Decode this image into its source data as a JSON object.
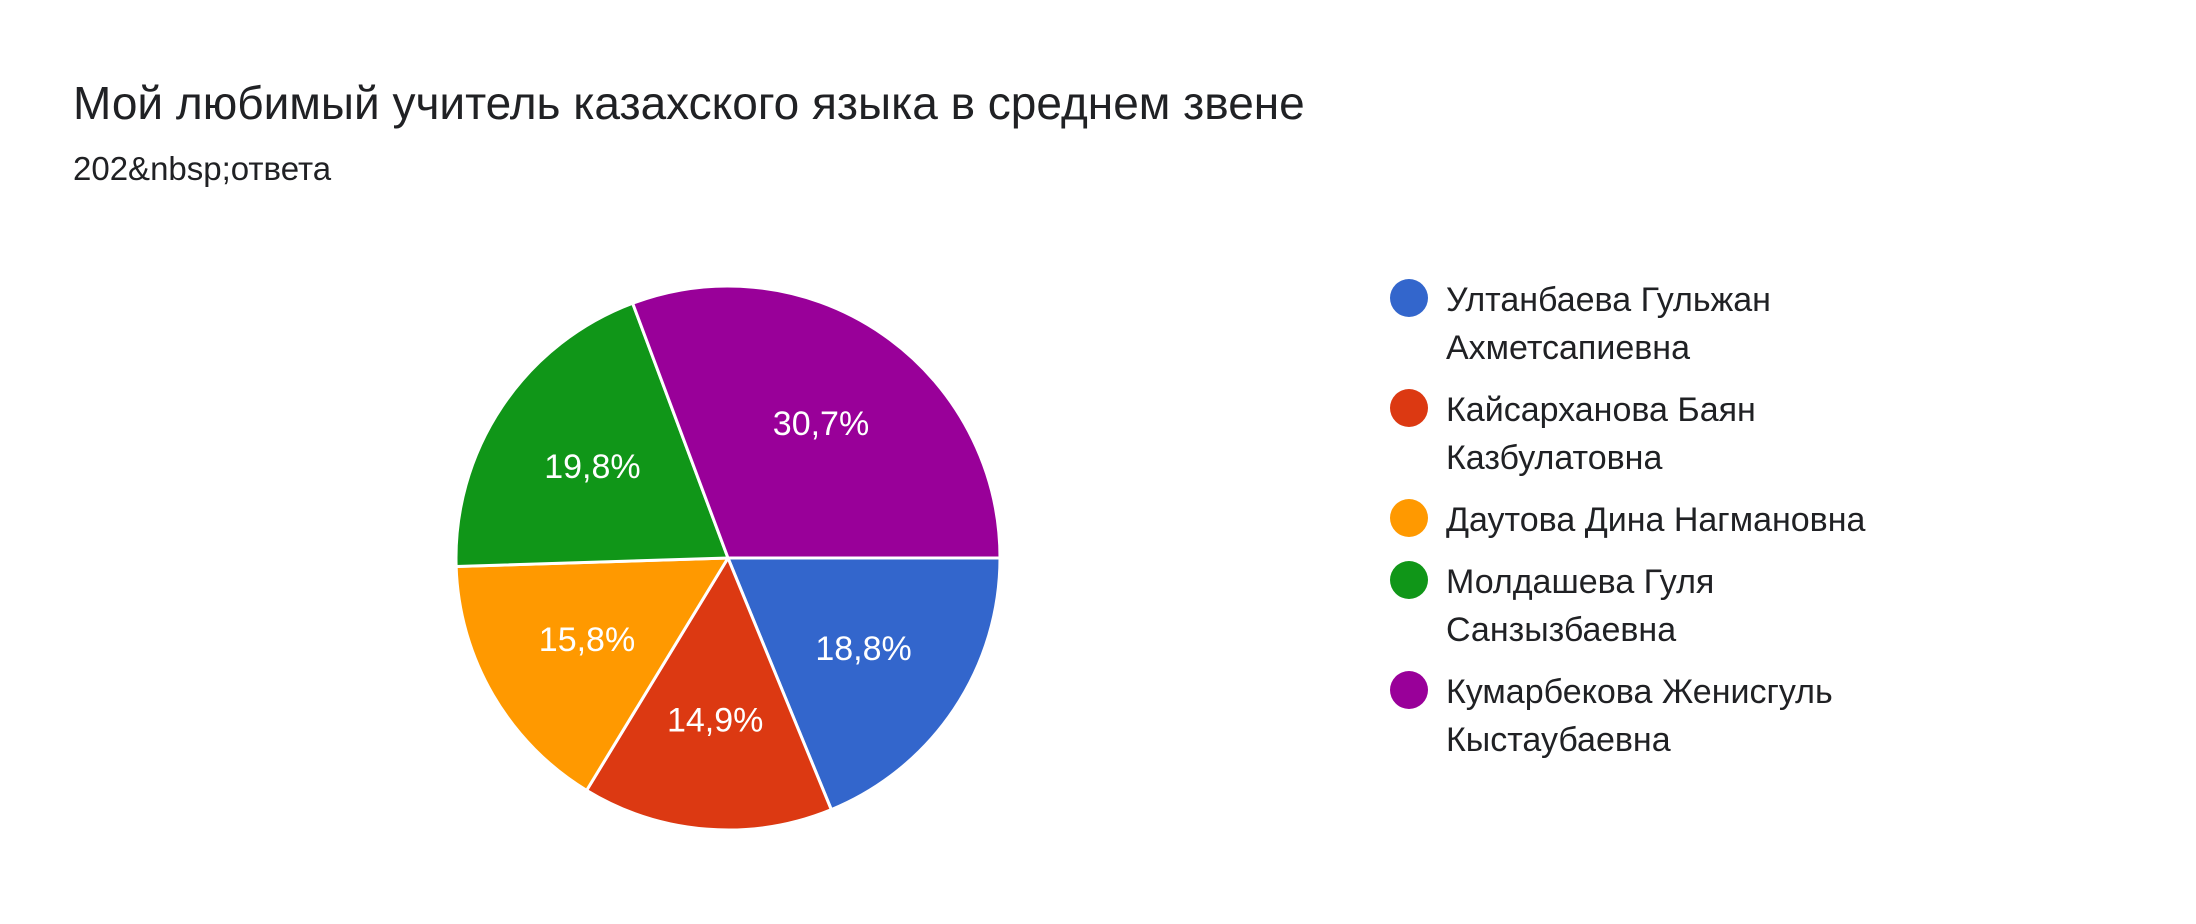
{
  "title": "Мой любимый учитель казахского языка в среднем звене",
  "subtitle": "202&nbsp;ответа",
  "chart_data": {
    "type": "pie",
    "title": "Мой любимый учитель казахского языка в среднем звене",
    "subtitle": "202&nbsp;ответа",
    "legend_position": "right",
    "slices": [
      {
        "label": "Ултанбаева Гульжан Ахметсапиевна",
        "value": 18.8,
        "display": "18,8%",
        "color": "#3366cc"
      },
      {
        "label": "Кайсарханова Баян Казбулатовна",
        "value": 14.9,
        "display": "14,9%",
        "color": "#dc3912"
      },
      {
        "label": "Даутова Дина Нагмановна",
        "value": 15.8,
        "display": "15,8%",
        "color": "#ff9900"
      },
      {
        "label": "Молдашева Гуля Санзызбаевна",
        "value": 19.8,
        "display": "19,8%",
        "color": "#109618"
      },
      {
        "label": "Кумарбекова Женисгуль Кыстаубаевна",
        "value": 30.7,
        "display": "30,7%",
        "color": "#990099"
      }
    ]
  }
}
